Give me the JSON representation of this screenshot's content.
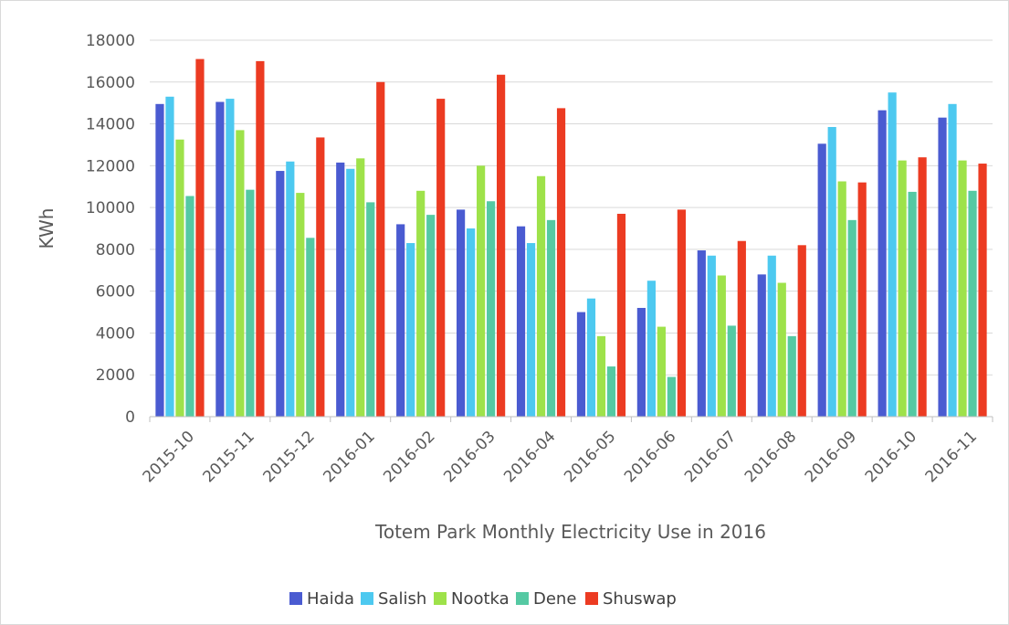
{
  "chart_data": {
    "type": "bar",
    "title": "",
    "xlabel": "Totem Park Monthly Electricity Use in 2016",
    "ylabel": "KWh",
    "ylim": [
      0,
      18000
    ],
    "yticks": [
      0,
      2000,
      4000,
      6000,
      8000,
      10000,
      12000,
      14000,
      16000,
      18000
    ],
    "grid": true,
    "legend": "bottom",
    "categories": [
      "2015-10",
      "2015-11",
      "2015-12",
      "2016-01",
      "2016-02",
      "2016-03",
      "2016-04",
      "2016-05",
      "2016-06",
      "2016-07",
      "2016-08",
      "2016-09",
      "2016-10",
      "2016-11"
    ],
    "series": [
      {
        "name": "Haida",
        "color": "#4a5bd1",
        "values": [
          14950,
          15050,
          11750,
          12150,
          9200,
          9900,
          9100,
          5000,
          5200,
          7950,
          6800,
          13050,
          14650,
          14300
        ]
      },
      {
        "name": "Salish",
        "color": "#4dc9f0",
        "values": [
          15300,
          15200,
          12200,
          11850,
          8300,
          9000,
          8300,
          5650,
          6500,
          7700,
          7700,
          13850,
          15500,
          14950
        ]
      },
      {
        "name": "Nootka",
        "color": "#9ee24a",
        "values": [
          13250,
          13700,
          10700,
          12350,
          10800,
          12000,
          11500,
          3850,
          4300,
          6750,
          6400,
          11250,
          12250,
          12250
        ]
      },
      {
        "name": "Dene",
        "color": "#55c9a3",
        "values": [
          10550,
          10850,
          8550,
          10250,
          9650,
          10300,
          9400,
          2400,
          1900,
          4350,
          3850,
          9400,
          10750,
          10800
        ]
      },
      {
        "name": "Shuswap",
        "color": "#ec3b22",
        "values": [
          17100,
          17000,
          13350,
          16000,
          15200,
          16350,
          14750,
          9700,
          9900,
          8400,
          8200,
          11200,
          12400,
          12100
        ]
      }
    ]
  }
}
